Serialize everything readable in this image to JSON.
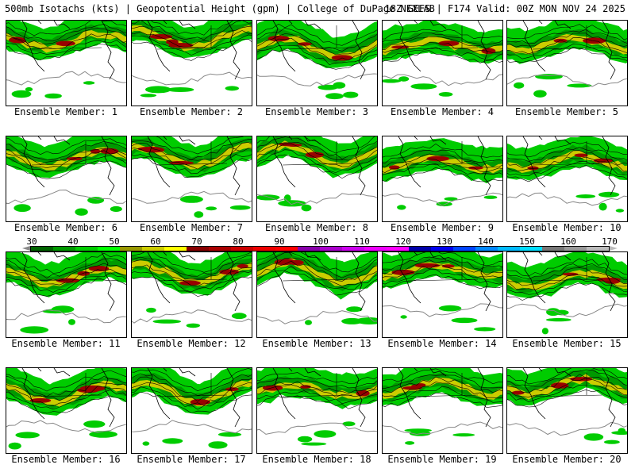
{
  "header": {
    "left_title": "500mb Isotachs (kts) | Geopotential Height (gpm) | College of DuPage NEXLAB",
    "right_title": "18Z GEFS | F174 Valid: 00Z MON NOV 24 2025"
  },
  "colorbar": {
    "ticks": [
      "30",
      "40",
      "50",
      "60",
      "70",
      "80",
      "90",
      "100",
      "110",
      "120",
      "130",
      "140",
      "150",
      "160",
      "170"
    ],
    "colors": [
      "#006400",
      "#009900",
      "#00cc00",
      "#00ff00",
      "#999900",
      "#cccc00",
      "#ffff00",
      "#880000",
      "#aa0000",
      "#cc0000",
      "#ee0000",
      "#ff0000",
      "#8800aa",
      "#aa00cc",
      "#cc00ee",
      "#ee00ff",
      "#ff00ff",
      "#0000aa",
      "#0000ee",
      "#0044ff",
      "#0088ff",
      "#00bbff",
      "#00ddff",
      "#777777",
      "#999999",
      "#bbbbbb"
    ]
  },
  "members": [
    {
      "label": "Ensemble Member: 1"
    },
    {
      "label": "Ensemble Member: 2"
    },
    {
      "label": "Ensemble Member: 3"
    },
    {
      "label": "Ensemble Member: 4"
    },
    {
      "label": "Ensemble Member: 5"
    },
    {
      "label": "Ensemble Member: 6"
    },
    {
      "label": "Ensemble Member: 7"
    },
    {
      "label": "Ensemble Member: 8"
    },
    {
      "label": "Ensemble Member: 9"
    },
    {
      "label": "Ensemble Member: 10"
    },
    {
      "label": "Ensemble Member: 11"
    },
    {
      "label": "Ensemble Member: 12"
    },
    {
      "label": "Ensemble Member: 13"
    },
    {
      "label": "Ensemble Member: 14"
    },
    {
      "label": "Ensemble Member: 15"
    },
    {
      "label": "Ensemble Member: 16"
    },
    {
      "label": "Ensemble Member: 17"
    },
    {
      "label": "Ensemble Member: 18"
    },
    {
      "label": "Ensemble Member: 19"
    },
    {
      "label": "Ensemble Member: 20"
    }
  ],
  "colors": {
    "jet_light": "#00cc00",
    "jet_dark": "#009900",
    "jet_core": "#cccc00",
    "jet_max": "#990000",
    "contour": "#000000",
    "coast": "#000000",
    "border": "#000000"
  }
}
